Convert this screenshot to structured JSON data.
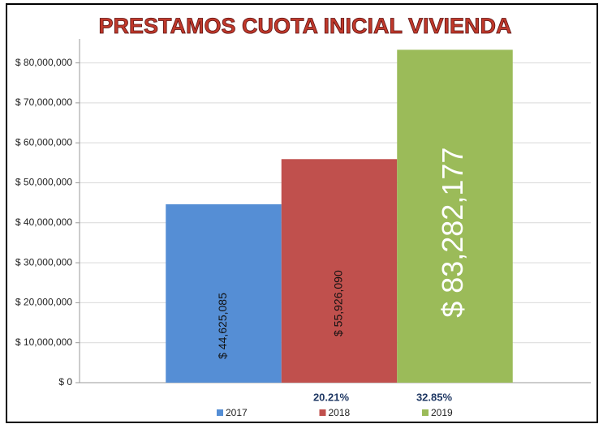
{
  "chart_data": {
    "type": "bar",
    "title": "PRESTAMOS CUOTA INICIAL VIVIENDA",
    "series": [
      {
        "name": "2017",
        "color": "#558ed5",
        "values": [
          44625085
        ],
        "value_labels": [
          "$ 44,625,085"
        ]
      },
      {
        "name": "2018",
        "color": "#c0504d",
        "values": [
          55926090
        ],
        "value_labels": [
          "$ 55,926,090"
        ]
      },
      {
        "name": "2019",
        "color": "#9bbb59",
        "values": [
          83282177
        ],
        "value_labels": [
          "$ 83,282,177"
        ]
      }
    ],
    "annotations": [
      "20.21%",
      "32.85%"
    ],
    "ylim": [
      0,
      86000000
    ],
    "yticks": [
      {
        "value": 0,
        "label": "$ 0"
      },
      {
        "value": 10000000,
        "label": "$ 10,000,000"
      },
      {
        "value": 20000000,
        "label": "$ 20,000,000"
      },
      {
        "value": 30000000,
        "label": "$ 30,000,000"
      },
      {
        "value": 40000000,
        "label": "$ 40,000,000"
      },
      {
        "value": 50000000,
        "label": "$ 50,000,000"
      },
      {
        "value": 60000000,
        "label": "$ 60,000,000"
      },
      {
        "value": 70000000,
        "label": "$ 70,000,000"
      },
      {
        "value": 80000000,
        "label": "$ 80,000,000"
      }
    ],
    "grid": true
  }
}
